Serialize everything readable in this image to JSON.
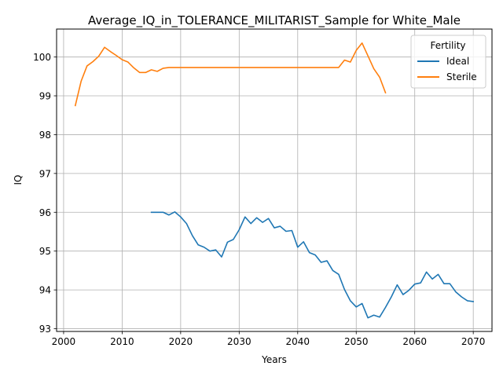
{
  "chart_data": {
    "type": "line",
    "title": "Average_IQ_in_TOLERANCE_MILITARIST_Sample for White_Male",
    "xlabel": "Years",
    "ylabel": "IQ",
    "xlim": [
      1998.8,
      2073.2
    ],
    "ylim": [
      92.93,
      100.72
    ],
    "xticks": [
      2000,
      2010,
      2020,
      2030,
      2040,
      2050,
      2060,
      2070
    ],
    "yticks": [
      93,
      94,
      95,
      96,
      97,
      98,
      99,
      100
    ],
    "grid": true,
    "legend": {
      "title": "Fertility",
      "placement": "upper right"
    },
    "series": [
      {
        "name": "Ideal",
        "color": "#1f77b4",
        "x": [
          2015,
          2016,
          2017,
          2018,
          2019,
          2020,
          2021,
          2022,
          2023,
          2024,
          2025,
          2026,
          2027,
          2028,
          2029,
          2030,
          2031,
          2032,
          2033,
          2034,
          2035,
          2036,
          2037,
          2038,
          2039,
          2040,
          2041,
          2042,
          2043,
          2044,
          2045,
          2046,
          2047,
          2048,
          2049,
          2050,
          2051,
          2052,
          2053,
          2054,
          2055,
          2056,
          2057,
          2058,
          2059,
          2060,
          2061,
          2062,
          2063,
          2064,
          2065,
          2066,
          2067,
          2068,
          2069,
          2070
        ],
        "y": [
          96.0,
          96.0,
          96.0,
          95.93,
          96.01,
          95.88,
          95.71,
          95.4,
          95.16,
          95.1,
          95.0,
          95.03,
          94.85,
          95.23,
          95.3,
          95.55,
          95.88,
          95.71,
          95.86,
          95.74,
          95.84,
          95.6,
          95.64,
          95.51,
          95.53,
          95.1,
          95.24,
          94.96,
          94.9,
          94.71,
          94.75,
          94.5,
          94.4,
          94.01,
          93.72,
          93.56,
          93.65,
          93.28,
          93.35,
          93.3,
          93.55,
          93.82,
          94.13,
          93.88,
          93.99,
          94.15,
          94.18,
          94.46,
          94.28,
          94.4,
          94.16,
          94.16,
          93.95,
          93.82,
          93.72,
          93.7
        ]
      },
      {
        "name": "Sterile",
        "color": "#ff7f0e",
        "x": [
          2002,
          2003,
          2004,
          2005,
          2006,
          2007,
          2008,
          2009,
          2010,
          2011,
          2012,
          2013,
          2014,
          2015,
          2016,
          2017,
          2018,
          2019,
          2020,
          2025,
          2030,
          2035,
          2040,
          2045,
          2047,
          2048,
          2049,
          2050,
          2051,
          2052,
          2053,
          2054,
          2055
        ],
        "y": [
          98.75,
          99.38,
          99.77,
          99.88,
          100.02,
          100.25,
          100.14,
          100.04,
          99.93,
          99.87,
          99.72,
          99.6,
          99.6,
          99.67,
          99.63,
          99.71,
          99.73,
          99.73,
          99.73,
          99.73,
          99.73,
          99.73,
          99.73,
          99.73,
          99.73,
          99.92,
          99.87,
          100.17,
          100.36,
          100.03,
          99.7,
          99.48,
          99.08
        ]
      }
    ]
  }
}
